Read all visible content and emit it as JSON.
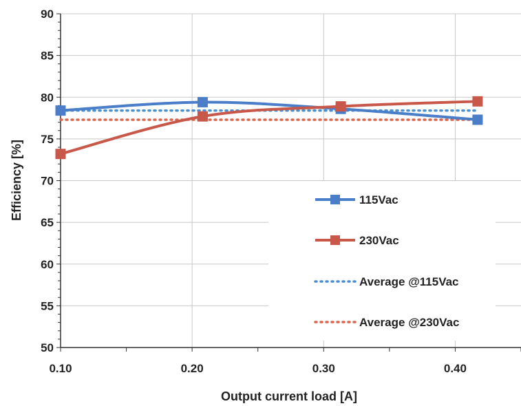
{
  "chart_data": {
    "type": "line",
    "xlabel": "Output current load [A]",
    "ylabel": "Efficiency [%]",
    "xlim": [
      0.1,
      0.45
    ],
    "ylim": [
      50,
      90
    ],
    "x_ticks": [
      "0.10",
      "0.20",
      "0.30",
      "0.40"
    ],
    "x_tick_values": [
      0.1,
      0.2,
      0.3,
      0.4
    ],
    "y_ticks": [
      "50",
      "55",
      "60",
      "65",
      "70",
      "75",
      "80",
      "85",
      "90"
    ],
    "y_tick_values": [
      50,
      55,
      60,
      65,
      70,
      75,
      80,
      85,
      90
    ],
    "grid": true,
    "legend_position": "bottom-right",
    "series": [
      {
        "name": "115Vac",
        "style": "solid-marker",
        "color": "#4a7ec9",
        "x": [
          0.1,
          0.208,
          0.313,
          0.417
        ],
        "y": [
          78.4,
          79.4,
          78.6,
          77.3
        ]
      },
      {
        "name": "230Vac",
        "style": "solid-marker",
        "color": "#c8584a",
        "x": [
          0.1,
          0.208,
          0.313,
          0.417
        ],
        "y": [
          73.2,
          77.7,
          78.9,
          79.5
        ]
      },
      {
        "name": "Average @115Vac",
        "style": "dotted",
        "color": "#4a8fd6",
        "x": [
          0.1,
          0.417
        ],
        "y": [
          78.4,
          78.4
        ]
      },
      {
        "name": "Average @230Vac",
        "style": "dotted",
        "color": "#d9664f",
        "x": [
          0.1,
          0.417
        ],
        "y": [
          77.3,
          77.3
        ]
      }
    ]
  }
}
